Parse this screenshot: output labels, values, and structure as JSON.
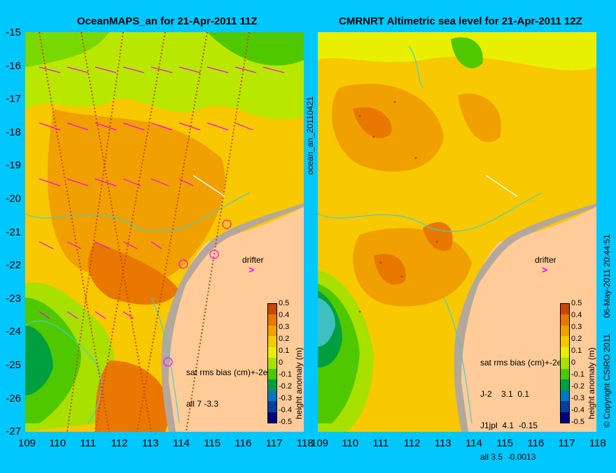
{
  "left_panel": {
    "title": "OceanMAPS_an for 21-Apr-2011 11Z",
    "side_label": "ocean_an_20110421",
    "stats": [
      "sat rms bias (cm)+-2e",
      "all 7 -3.3"
    ]
  },
  "right_panel": {
    "title": "CMRNRT Altimetric sea level  for 21-Apr-2011 12Z",
    "side_label": "06-May-2011 20:44:51",
    "stats": [
      "sat rms bias (cm)+-2e",
      "J-2    3.1  0.1",
      "J1jpl  4.1  -0.15",
      "all 3.5  -0.0013"
    ],
    "copyright": "© Copyright CSIRO 2011"
  },
  "axes": {
    "y_ticks": [
      "-15",
      "-16",
      "-17",
      "-18",
      "-19",
      "-20",
      "-21",
      "-22",
      "-23",
      "-24",
      "-25",
      "-26",
      "-27"
    ],
    "x_ticks_left": [
      "109",
      "110",
      "111",
      "112",
      "113",
      "114",
      "115",
      "116",
      "117",
      "118"
    ],
    "x_ticks_right": [
      "109",
      "110",
      "111",
      "112",
      "113",
      "114",
      "115",
      "116",
      "117",
      "118"
    ]
  },
  "colorbar": {
    "label": "height anomaly (m)",
    "ticks": [
      "0.5",
      "0.4",
      "0.3",
      "0.2",
      "0.1",
      "0",
      "-0.1",
      "-0.2",
      "-0.3",
      "-0.4",
      "-0.5"
    ],
    "colors": [
      "#c84800",
      "#e87800",
      "#f0a000",
      "#f8c800",
      "#e8f000",
      "#a8e000",
      "#50c800",
      "#00a040",
      "#0078c0",
      "#0040a0",
      "#000080"
    ]
  },
  "drifter": {
    "label": "drifter",
    "symbol": ">"
  },
  "colors": {
    "background": "#00c8ff",
    "land": "#ffcc99",
    "coast_shelf": "#b4a89c",
    "isobath": "#40d0d0",
    "vector": "#ff00ff"
  }
}
